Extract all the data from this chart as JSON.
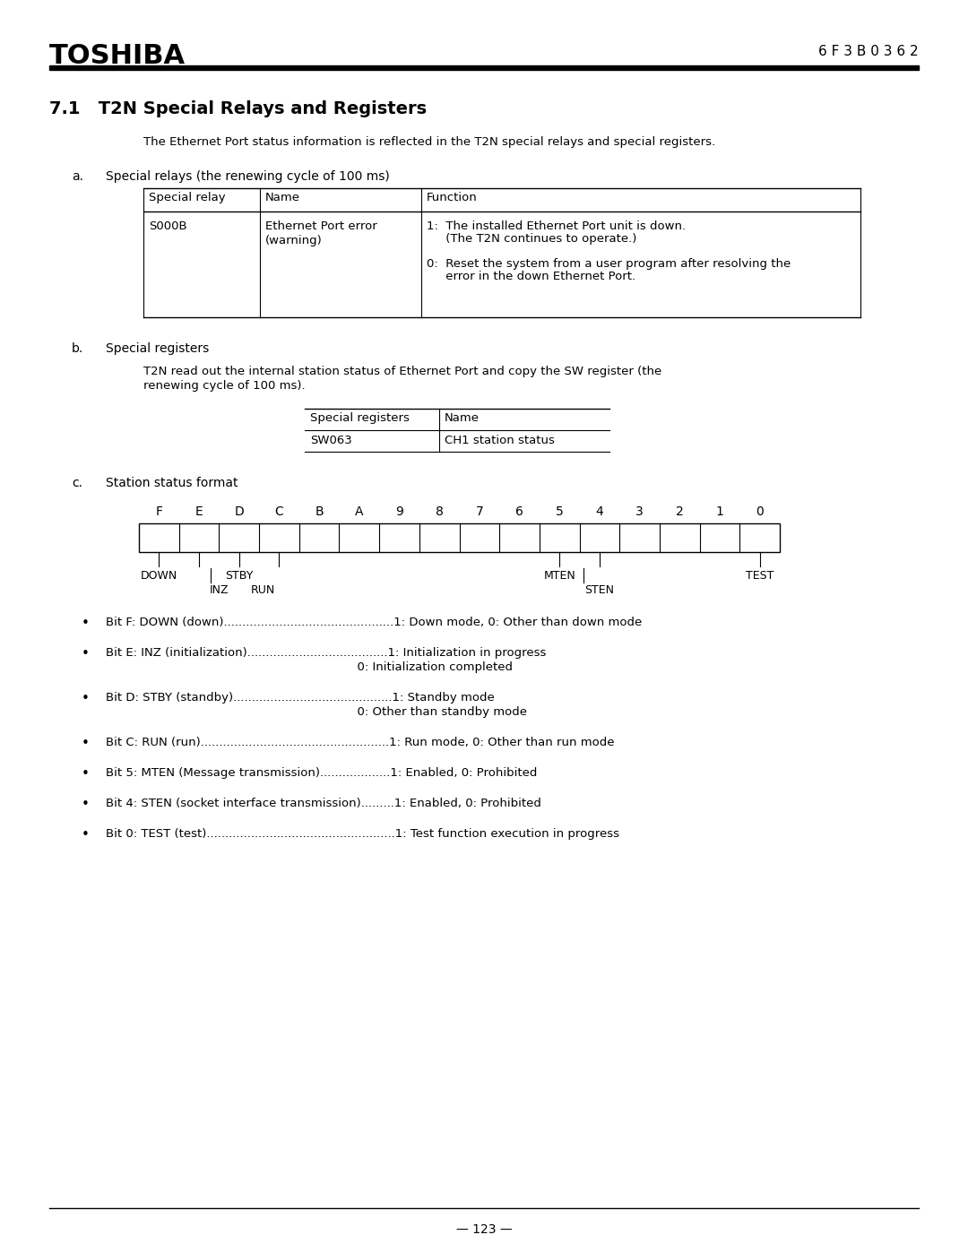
{
  "page_bg": "#ffffff",
  "header_logo": "TOSHIBA",
  "header_code": "6 F 3 B 0 3 6 2",
  "section_title": "7.1   T2N Special Relays and Registers",
  "intro_text": "The Ethernet Port status information is reflected in the T2N special relays and special registers.",
  "section_a_label": "a.",
  "section_a_title": "Special relays (the renewing cycle of 100 ms)",
  "table_a_headers": [
    "Special relay",
    "Name",
    "Function"
  ],
  "table_a_col0": "S000B",
  "table_a_col1_line1": "Ethernet Port error",
  "table_a_col1_line2": "(warning)",
  "table_a_col2_line1": "1:  The installed Ethernet Port unit is down.",
  "table_a_col2_line2": "     (The T2N continues to operate.)",
  "table_a_col2_line3": "0:  Reset the system from a user program after resolving the",
  "table_a_col2_line4": "     error in the down Ethernet Port.",
  "section_b_label": "b.",
  "section_b_title": "Special registers",
  "section_b_text1": "T2N read out the internal station status of Ethernet Port and copy the SW register (the",
  "section_b_text2": "renewing cycle of 100 ms).",
  "table_b_headers": [
    "Special registers",
    "Name"
  ],
  "table_b_row": [
    "SW063",
    "CH1 station status"
  ],
  "section_c_label": "c.",
  "section_c_title": "Station status format",
  "bit_labels": [
    "F",
    "E",
    "D",
    "C",
    "B",
    "A",
    "9",
    "8",
    "7",
    "6",
    "5",
    "4",
    "3",
    "2",
    "1",
    "0"
  ],
  "bullet_lines": [
    [
      "Bit F: DOWN (down)..............................................1: Down mode, 0: Other than down mode",
      ""
    ],
    [
      "Bit E: INZ (initialization)......................................1: Initialization in progress",
      "                                                                  0: Initialization completed"
    ],
    [
      "Bit D: STBY (standby)...........................................1: Standby mode",
      "                                                                  0: Other than standby mode"
    ],
    [
      "Bit C: RUN (run)...................................................1: Run mode, 0: Other than run mode",
      ""
    ],
    [
      "Bit 5: MTEN (Message transmission)...................1: Enabled, 0: Prohibited",
      ""
    ],
    [
      "Bit 4: STEN (socket interface transmission).........1: Enabled, 0: Prohibited",
      ""
    ],
    [
      "Bit 0: TEST (test)...................................................1: Test function execution in progress",
      ""
    ]
  ],
  "footer_page": "— 123 —",
  "font_color": "#000000",
  "line_color": "#000000"
}
